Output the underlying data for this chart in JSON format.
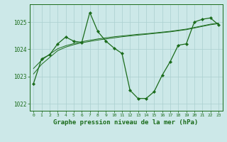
{
  "title": "Graphe pression niveau de la mer (hPa)",
  "bg_color": "#cce8e8",
  "line_color": "#1a6b1a",
  "grid_color": "#aacfcf",
  "hours": [
    0,
    1,
    2,
    3,
    4,
    5,
    6,
    7,
    8,
    9,
    10,
    11,
    12,
    13,
    14,
    15,
    16,
    17,
    18,
    19,
    20,
    21,
    22,
    23
  ],
  "pressure_main": [
    1022.75,
    1023.65,
    1023.8,
    1024.2,
    1024.45,
    1024.3,
    1024.25,
    1025.35,
    1024.65,
    1024.3,
    1024.05,
    1023.85,
    1022.5,
    1022.2,
    1022.2,
    1022.45,
    1023.05,
    1023.55,
    1024.15,
    1024.2,
    1025.0,
    1025.1,
    1025.15,
    1024.9
  ],
  "pressure_smooth1": [
    1023.1,
    1023.45,
    1023.7,
    1023.95,
    1024.08,
    1024.17,
    1024.24,
    1024.29,
    1024.34,
    1024.38,
    1024.42,
    1024.46,
    1024.49,
    1024.52,
    1024.55,
    1024.58,
    1024.61,
    1024.64,
    1024.68,
    1024.72,
    1024.78,
    1024.84,
    1024.9,
    1024.94
  ],
  "pressure_smooth2": [
    1023.3,
    1023.6,
    1023.82,
    1024.02,
    1024.13,
    1024.21,
    1024.28,
    1024.33,
    1024.38,
    1024.42,
    1024.46,
    1024.49,
    1024.52,
    1024.55,
    1024.57,
    1024.6,
    1024.63,
    1024.66,
    1024.7,
    1024.74,
    1024.8,
    1024.86,
    1024.92,
    1024.96
  ],
  "ylim": [
    1021.75,
    1025.65
  ],
  "yticks": [
    1022,
    1023,
    1024,
    1025
  ],
  "xlim": [
    -0.5,
    23.5
  ]
}
